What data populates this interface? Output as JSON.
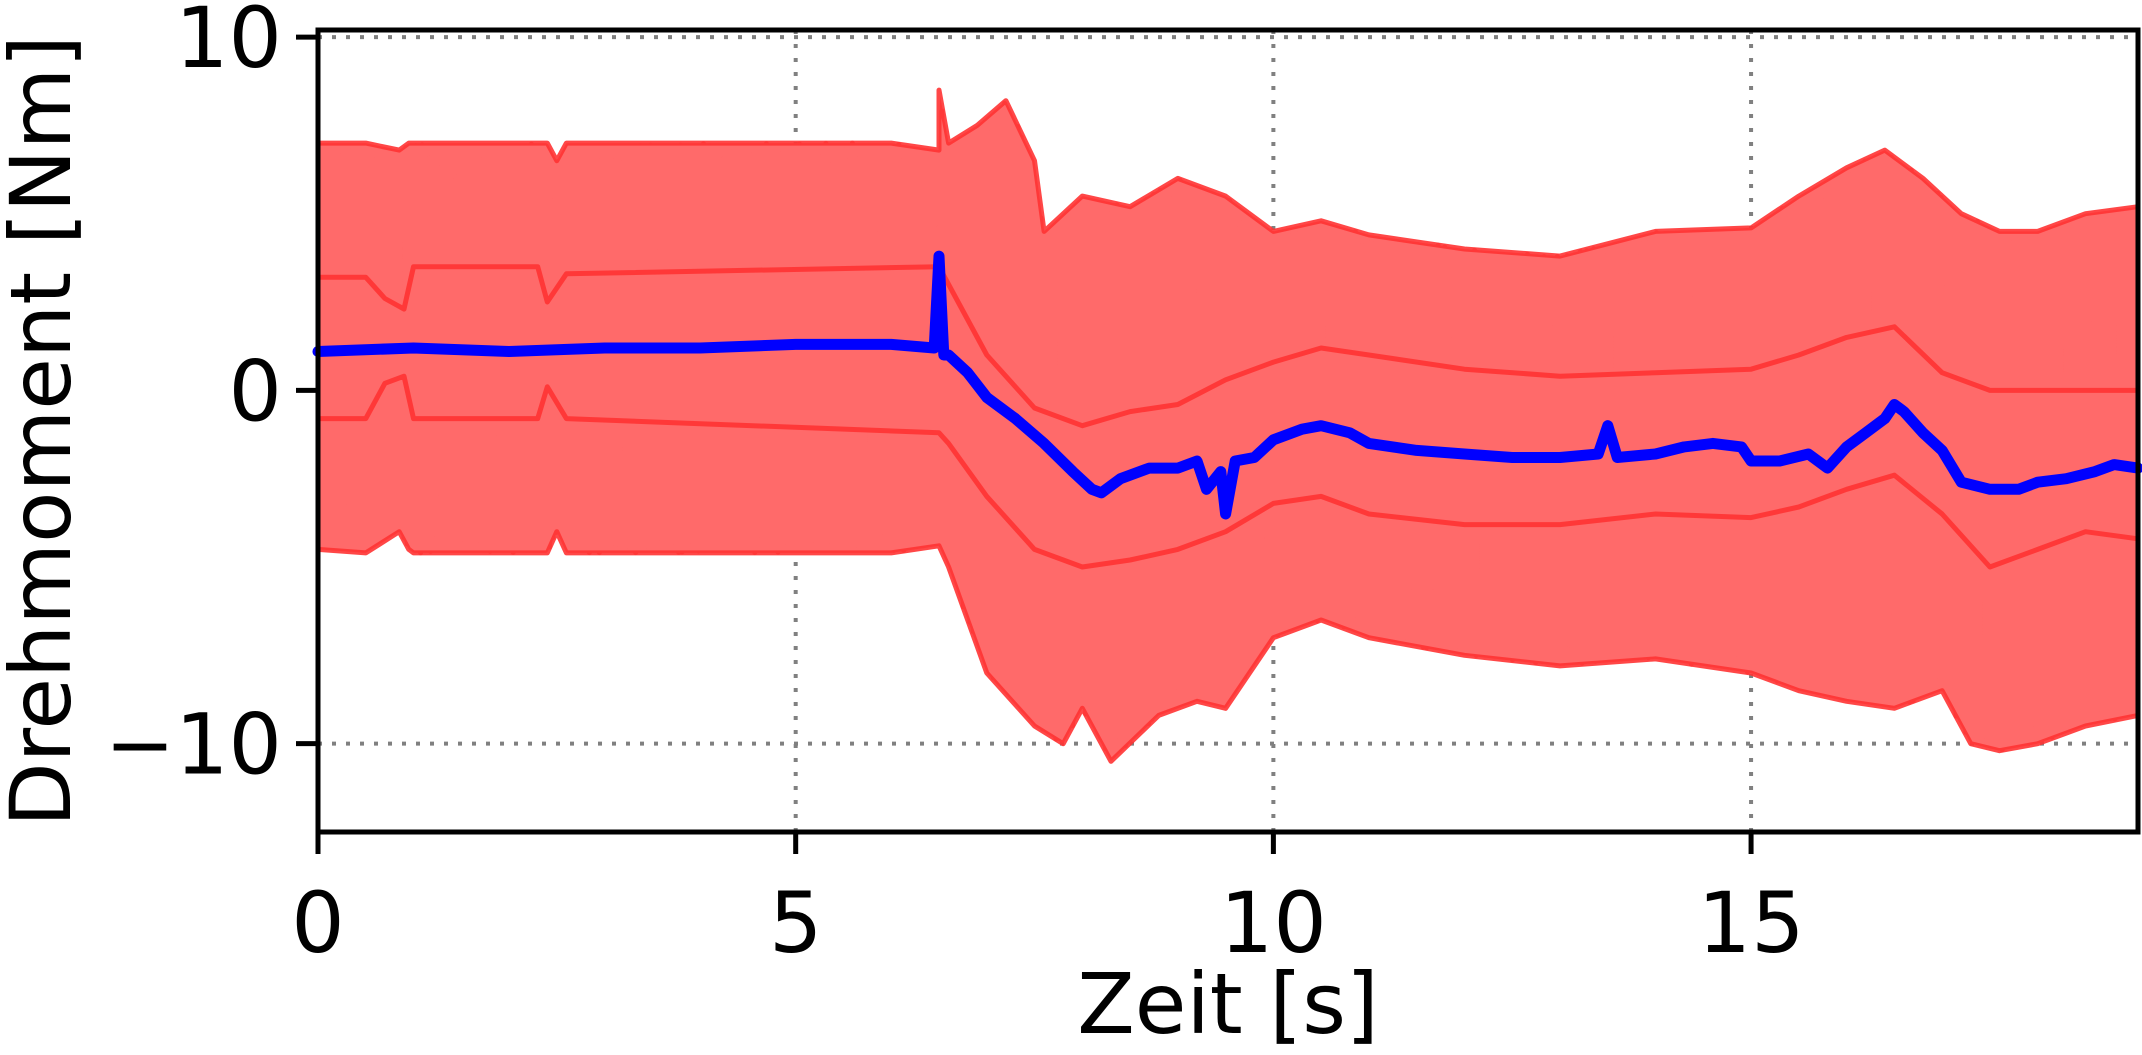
{
  "chart_data": {
    "type": "line",
    "title": "",
    "xlabel": "Zeit [s]",
    "ylabel": "Drehmoment [Nm]",
    "xlim": [
      0,
      19.05
    ],
    "ylim": [
      -12.5,
      10.2
    ],
    "xticks": [
      0,
      5,
      10,
      15
    ],
    "yticks": [
      -10,
      0,
      10
    ],
    "xtick_labels": [
      "0",
      "5",
      "10",
      "15"
    ],
    "ytick_labels": [
      "−10",
      "0",
      "10"
    ],
    "grid": {
      "style": "dotted",
      "color": "#808080"
    },
    "band": {
      "color": "#ff6a6a",
      "edge_color": "#ff3333",
      "upper_high": {
        "x": [
          0,
          0.5,
          0.85,
          0.95,
          1.0,
          2.4,
          2.5,
          2.6,
          6.0,
          6.5,
          6.5,
          6.6,
          6.9,
          7.2,
          7.5,
          7.6,
          8.0,
          8.5,
          9.0,
          9.5,
          10.0,
          10.5,
          11.0,
          12.0,
          13.0,
          14.0,
          15.0,
          15.5,
          16.0,
          16.4,
          16.8,
          17.2,
          17.6,
          18.0,
          18.5,
          19.05
        ],
        "y": [
          7.0,
          7.0,
          6.8,
          7.0,
          7.0,
          7.0,
          6.5,
          7.0,
          7.0,
          6.8,
          8.5,
          7.0,
          7.5,
          8.2,
          6.5,
          4.5,
          5.5,
          5.2,
          6.0,
          5.5,
          4.5,
          4.8,
          4.4,
          4.0,
          3.8,
          4.5,
          4.6,
          5.5,
          6.3,
          6.8,
          6.0,
          5.0,
          4.5,
          4.5,
          5.0,
          5.2
        ]
      },
      "upper_mid": {
        "x": [
          0,
          0.5,
          0.7,
          0.9,
          1.0,
          2.3,
          2.4,
          2.6,
          6.5,
          6.6,
          7.0,
          7.5,
          8.0,
          8.5,
          9.0,
          9.5,
          10.0,
          10.5,
          11.0,
          12.0,
          13.0,
          14.0,
          15.0,
          15.5,
          16.0,
          16.5,
          17.0,
          17.5,
          18.0,
          18.5,
          19.05
        ],
        "y": [
          3.2,
          3.2,
          2.6,
          2.3,
          3.5,
          3.5,
          2.5,
          3.3,
          3.5,
          3.0,
          1.0,
          -0.5,
          -1.0,
          -0.6,
          -0.4,
          0.3,
          0.8,
          1.2,
          1.0,
          0.6,
          0.4,
          0.5,
          0.6,
          1.0,
          1.5,
          1.8,
          0.5,
          0.0,
          0.0,
          0.0,
          0.0
        ]
      },
      "lower_mid": {
        "x": [
          0,
          0.5,
          0.7,
          0.9,
          1.0,
          2.3,
          2.4,
          2.6,
          6.5,
          6.6,
          7.0,
          7.5,
          8.0,
          8.5,
          9.0,
          9.5,
          10.0,
          10.5,
          11.0,
          12.0,
          13.0,
          14.0,
          15.0,
          15.5,
          16.0,
          16.5,
          17.0,
          17.5,
          18.0,
          18.5,
          19.05
        ],
        "y": [
          -0.8,
          -0.8,
          0.2,
          0.4,
          -0.8,
          -0.8,
          0.1,
          -0.8,
          -1.2,
          -1.5,
          -3.0,
          -4.5,
          -5.0,
          -4.8,
          -4.5,
          -4.0,
          -3.2,
          -3.0,
          -3.5,
          -3.8,
          -3.8,
          -3.5,
          -3.6,
          -3.3,
          -2.8,
          -2.4,
          -3.5,
          -5.0,
          -4.5,
          -4.0,
          -4.2
        ]
      },
      "lower_low": {
        "x": [
          0,
          0.5,
          0.85,
          0.95,
          1.0,
          2.4,
          2.5,
          2.6,
          6.0,
          6.5,
          6.6,
          7.0,
          7.5,
          7.8,
          8.0,
          8.3,
          8.8,
          9.2,
          9.5,
          10.0,
          10.5,
          11.0,
          12.0,
          13.0,
          14.0,
          15.0,
          15.5,
          16.0,
          16.5,
          17.0,
          17.3,
          17.6,
          18.0,
          18.5,
          19.05
        ],
        "y": [
          -4.5,
          -4.6,
          -4.0,
          -4.5,
          -4.6,
          -4.6,
          -4.0,
          -4.6,
          -4.6,
          -4.4,
          -5.0,
          -8.0,
          -9.5,
          -10.0,
          -9.0,
          -10.5,
          -9.2,
          -8.8,
          -9.0,
          -7.0,
          -6.5,
          -7.0,
          -7.5,
          -7.8,
          -7.6,
          -8.0,
          -8.5,
          -8.8,
          -9.0,
          -8.5,
          -10.0,
          -10.2,
          -10.0,
          -9.5,
          -9.2
        ]
      }
    },
    "series": [
      {
        "color": "#0000ff",
        "x": [
          0,
          1.0,
          2.0,
          3.0,
          4.0,
          5.0,
          6.0,
          6.45,
          6.5,
          6.55,
          6.6,
          6.8,
          7.0,
          7.3,
          7.6,
          7.9,
          8.1,
          8.2,
          8.4,
          8.7,
          9.0,
          9.2,
          9.3,
          9.45,
          9.5,
          9.6,
          9.8,
          10.0,
          10.3,
          10.5,
          10.8,
          11.0,
          11.5,
          12.0,
          12.5,
          13.0,
          13.4,
          13.5,
          13.6,
          14.0,
          14.3,
          14.6,
          14.9,
          15.0,
          15.3,
          15.6,
          15.8,
          16.0,
          16.2,
          16.4,
          16.5,
          16.6,
          16.8,
          17.0,
          17.2,
          17.5,
          17.8,
          18.0,
          18.3,
          18.6,
          18.8,
          19.05
        ],
        "y": [
          1.1,
          1.2,
          1.1,
          1.2,
          1.2,
          1.3,
          1.3,
          1.2,
          3.8,
          1.0,
          1.0,
          0.5,
          -0.2,
          -0.8,
          -1.5,
          -2.3,
          -2.8,
          -2.9,
          -2.5,
          -2.2,
          -2.2,
          -2.0,
          -2.8,
          -2.3,
          -3.5,
          -2.0,
          -1.9,
          -1.4,
          -1.1,
          -1.0,
          -1.2,
          -1.5,
          -1.7,
          -1.8,
          -1.9,
          -1.9,
          -1.8,
          -1.0,
          -1.9,
          -1.8,
          -1.6,
          -1.5,
          -1.6,
          -2.0,
          -2.0,
          -1.8,
          -2.2,
          -1.6,
          -1.2,
          -0.8,
          -0.4,
          -0.6,
          -1.2,
          -1.7,
          -2.6,
          -2.8,
          -2.8,
          -2.6,
          -2.5,
          -2.3,
          -2.1,
          -2.2
        ]
      }
    ]
  }
}
